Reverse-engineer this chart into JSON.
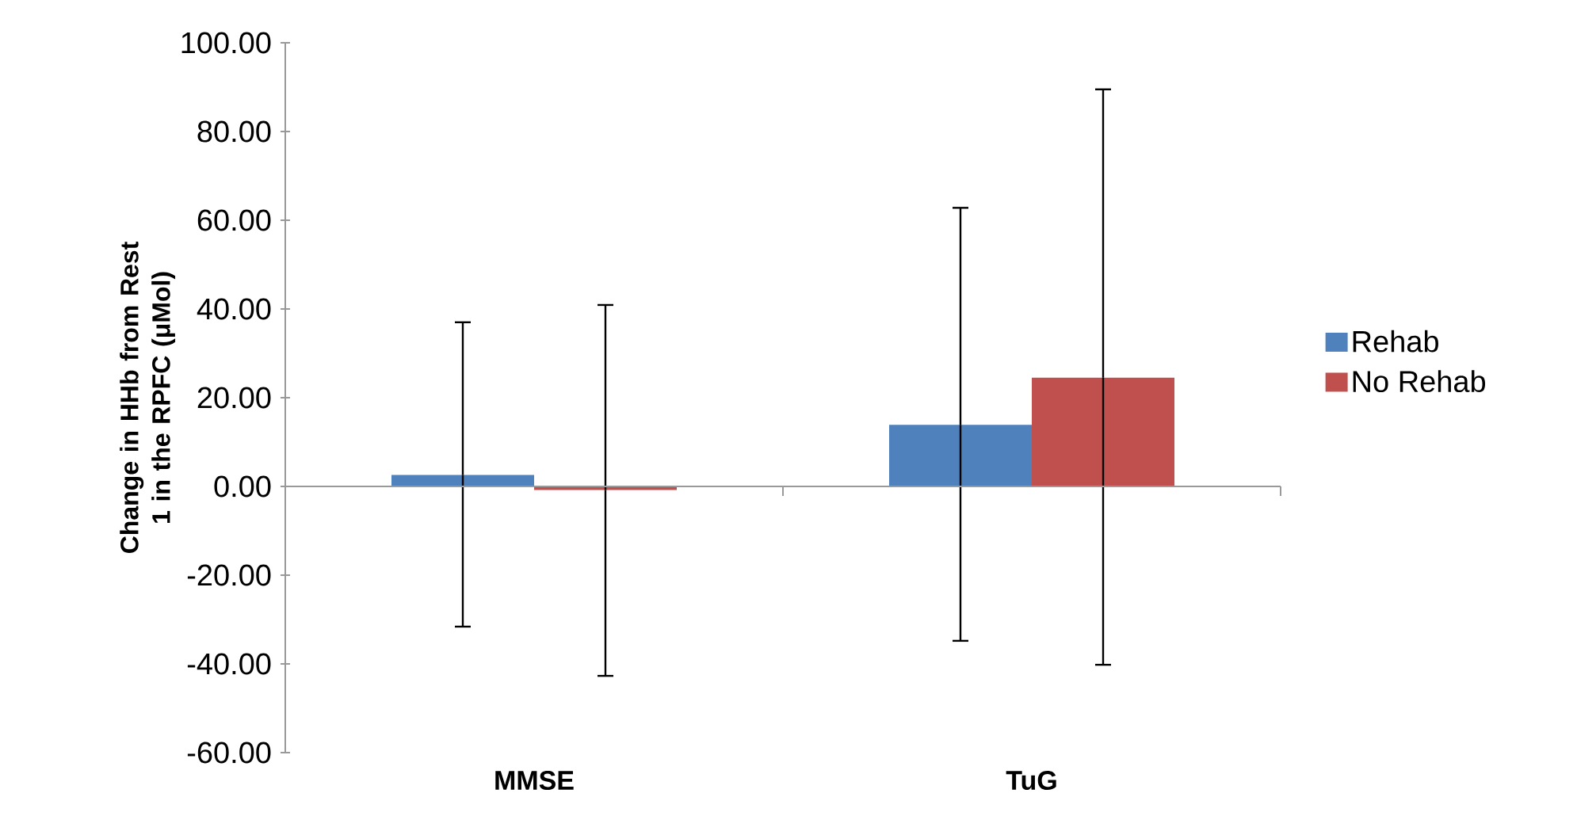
{
  "chart_data": {
    "type": "bar",
    "ylabel": "Change in HHb from Rest 1 in the RPFC (μMol)",
    "categories": [
      "MMSE",
      "TuG"
    ],
    "series": [
      {
        "name": "Rehab",
        "color": "#4f81bd",
        "values": [
          2.6,
          13.9
        ],
        "errors": [
          [
            -31.6,
            37.0
          ],
          [
            -34.8,
            62.8
          ]
        ]
      },
      {
        "name": "No Rehab",
        "color": "#c0504d",
        "values": [
          -0.8,
          24.5
        ],
        "errors": [
          [
            -42.7,
            40.9
          ],
          [
            -40.2,
            89.5
          ]
        ]
      }
    ],
    "ylim": [
      -60,
      100
    ],
    "yticks": [
      {
        "value": -60,
        "label": "-60.00"
      },
      {
        "value": -40,
        "label": "-40.00"
      },
      {
        "value": -20,
        "label": "-20.00"
      },
      {
        "value": 0,
        "label": "0.00"
      },
      {
        "value": 20,
        "label": "20.00"
      },
      {
        "value": 40,
        "label": "40.00"
      },
      {
        "value": 60,
        "label": "60.00"
      },
      {
        "value": 80,
        "label": "80.00"
      },
      {
        "value": 100,
        "label": "100.00"
      }
    ],
    "legend": "right"
  }
}
